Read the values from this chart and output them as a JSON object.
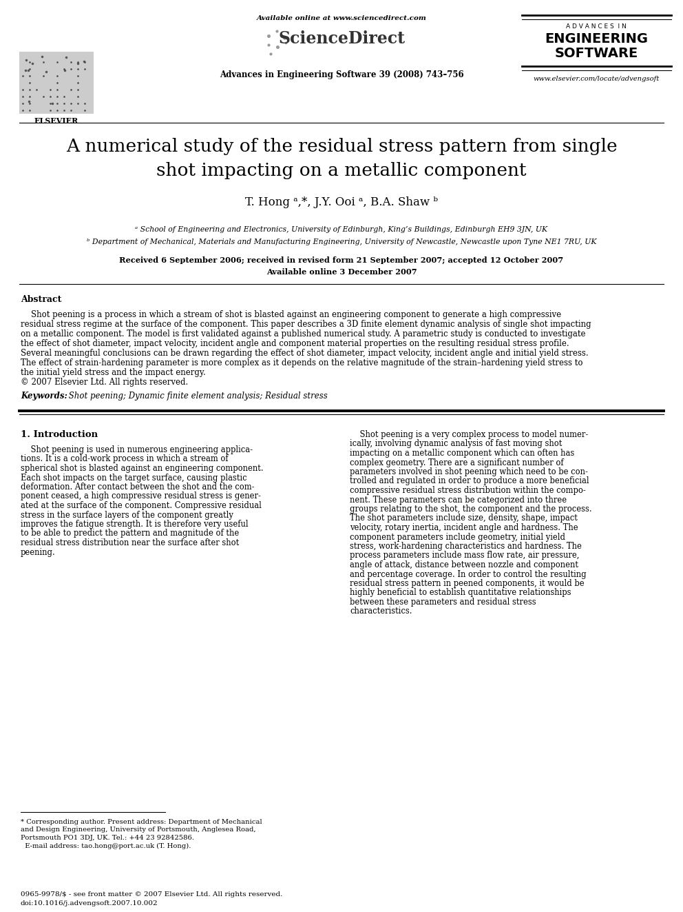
{
  "bg_color": "#ffffff",
  "title_line1": "A numerical study of the residual stress pattern from single",
  "title_line2": "shot impacting on a metallic component",
  "authors": "T. Hong ᵃ,*, J.Y. Ooi ᵃ, B.A. Shaw ᵇ",
  "affil_a": "ᵃ School of Engineering and Electronics, University of Edinburgh, King’s Buildings, Edinburgh EH9 3JN, UK",
  "affil_b": "ᵇ Department of Mechanical, Materials and Manufacturing Engineering, University of Newcastle, Newcastle upon Tyne NE1 7RU, UK",
  "received": "Received 6 September 2006; received in revised form 21 September 2007; accepted 12 October 2007",
  "available": "Available online 3 December 2007",
  "journal_info": "Advances in Engineering Software 39 (2008) 743–756",
  "available_online": "Available online at www.sciencedirect.com",
  "journal_title1": "A D V A N C E S  I N",
  "journal_title2": "ENGINEERING",
  "journal_title3": "SOFTWARE",
  "website": "www.elsevier.com/locate/advengsoft",
  "elsevier_label": "ELSEVIER",
  "abstract_title": "Abstract",
  "abstract_text": "    Shot peening is a process in which a stream of shot is blasted against an engineering component to generate a high compressive\nresidual stress regime at the surface of the component. This paper describes a 3D finite element dynamic analysis of single shot impacting\non a metallic component. The model is first validated against a published numerical study. A parametric study is conducted to investigate\nthe effect of shot diameter, impact velocity, incident angle and component material properties on the resulting residual stress profile.\nSeveral meaningful conclusions can be drawn regarding the effect of shot diameter, impact velocity, incident angle and initial yield stress.\nThe effect of strain-hardening parameter is more complex as it depends on the relative magnitude of the strain–hardening yield stress to\nthe initial yield stress and the impact energy.\n© 2007 Elsevier Ltd. All rights reserved.",
  "keywords_label": "Keywords:",
  "keywords_text": " Shot peening; Dynamic finite element analysis; Residual stress",
  "section1_title": "1. Introduction",
  "intro_left": "    Shot peening is used in numerous engineering applica-\ntions. It is a cold-work process in which a stream of\nspherical shot is blasted against an engineering component.\nEach shot impacts on the target surface, causing plastic\ndeformation. After contact between the shot and the com-\nponent ceased, a high compressive residual stress is gener-\nated at the surface of the component. Compressive residual\nstress in the surface layers of the component greatly\nimproves the fatigue strength. It is therefore very useful\nto be able to predict the pattern and magnitude of the\nresidual stress distribution near the surface after shot\npeening.",
  "intro_right": "    Shot peening is a very complex process to model numer-\nically, involving dynamic analysis of fast moving shot\nimpacting on a metallic component which can often has\ncomplex geometry. There are a significant number of\nparameters involved in shot peening which need to be con-\ntrolled and regulated in order to produce a more beneficial\ncompressive residual stress distribution within the compo-\nnent. These parameters can be categorized into three\ngroups relating to the shot, the component and the process.\nThe shot parameters include size, density, shape, impact\nvelocity, rotary inertia, incident angle and hardness. The\ncomponent parameters include geometry, initial yield\nstress, work-hardening characteristics and hardness. The\nprocess parameters include mass flow rate, air pressure,\nangle of attack, distance between nozzle and component\nand percentage coverage. In order to control the resulting\nresidual stress pattern in peened components, it would be\nhighly beneficial to establish quantitative relationships\nbetween these parameters and residual stress\ncharacteristics.",
  "footnote_star": "* Corresponding author. Present address: Department of Mechanical\nand Design Engineering, University of Portsmouth, Anglesea Road,\nPortsmouth PO1 3DJ, UK. Tel.: +44 23 92842586.\n  E-mail address: tao.hong@port.ac.uk (T. Hong).",
  "footer_text": "0965-9978/$ - see front matter © 2007 Elsevier Ltd. All rights reserved.\ndoi:10.1016/j.advengsoft.2007.10.002"
}
